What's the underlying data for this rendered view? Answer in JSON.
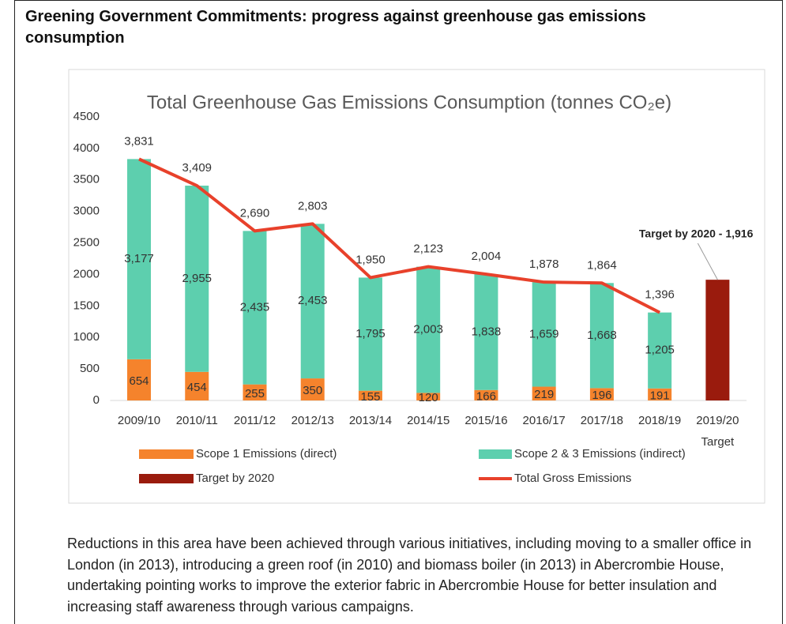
{
  "header": {
    "title": "Greening Government Commitments: progress against greenhouse gas emissions consumption"
  },
  "chart_data": {
    "type": "bar",
    "stacked": true,
    "title": "Total Greenhouse Gas Emissions Consumption (tonnes CO₂e)",
    "categories": [
      "2009/10",
      "2010/11",
      "2011/12",
      "2012/13",
      "2013/14",
      "2014/15",
      "2015/16",
      "2016/17",
      "2017/18",
      "2018/19",
      "2019/20 Target"
    ],
    "series": [
      {
        "name": "Scope 1 Emissions (direct)",
        "type": "bar",
        "color": "#f5832c",
        "values": [
          654,
          454,
          255,
          350,
          155,
          120,
          166,
          219,
          196,
          191,
          null
        ]
      },
      {
        "name": "Scope 2 & 3 Emissions (indirect)",
        "type": "bar",
        "color": "#5dcfae",
        "values": [
          3177,
          2955,
          2435,
          2453,
          1795,
          2003,
          1838,
          1659,
          1668,
          1205,
          null
        ],
        "value_labels": [
          "3,177",
          "2,955",
          "2,435",
          "2,453",
          "1,795",
          "2,003",
          "1,838",
          "1,659",
          "1,668",
          "1,205",
          null
        ]
      },
      {
        "name": "Target by 2020",
        "type": "bar",
        "color": "#9a1b0d",
        "values": [
          null,
          null,
          null,
          null,
          null,
          null,
          null,
          null,
          null,
          null,
          1916
        ]
      },
      {
        "name": "Total Gross Emissions",
        "type": "line",
        "color": "#e8412b",
        "values": [
          3831,
          3409,
          2690,
          2803,
          1950,
          2123,
          2004,
          1878,
          1864,
          1396,
          null
        ],
        "value_labels": [
          "3,831",
          "3,409",
          "2,690",
          "2,803",
          "1,950",
          "2,123",
          "2,004",
          "1,878",
          "1,864",
          "1,396",
          null
        ]
      }
    ],
    "annotations": [
      {
        "text": "Target by 2020 - 1,916",
        "series": 2,
        "index": 10
      }
    ],
    "ylim": [
      0,
      4500
    ],
    "yticks": [
      0,
      500,
      1000,
      1500,
      2000,
      2500,
      3000,
      3500,
      4000,
      4500
    ],
    "grid": false
  },
  "paragraph": "Reductions in this area have been achieved through various initiatives, including moving to a smaller office in London (in 2013), introducing a green roof (in 2010) and biomass boiler (in 2013) in Abercrombie House, undertaking pointing works to improve the exterior fabric in Abercrombie House for better insulation and increasing staff awareness through various campaigns."
}
